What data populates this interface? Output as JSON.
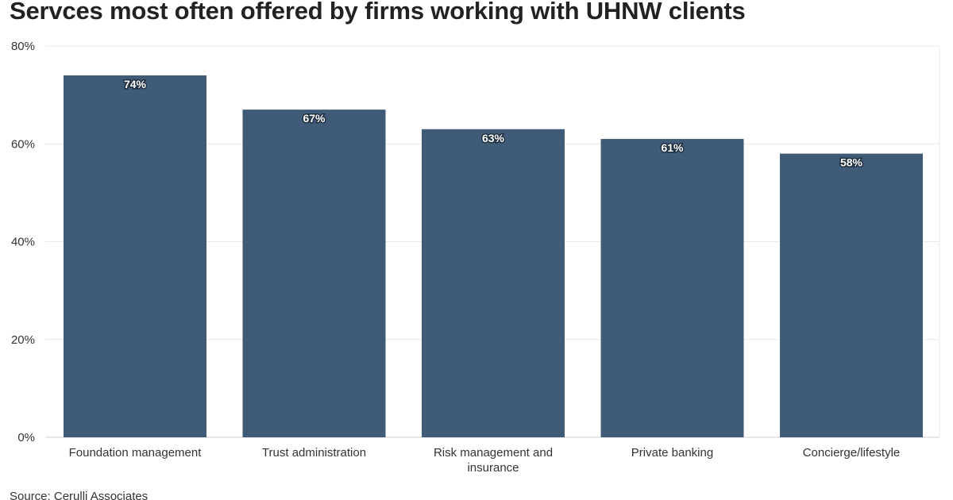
{
  "chart_data": {
    "type": "bar",
    "title": "Servces most often offered by firms working with UHNW clients",
    "categories": [
      "Foundation management",
      "Trust administration",
      "Risk management and insurance",
      "Private banking",
      "Concierge/lifestyle"
    ],
    "category_label_lines": [
      [
        "Foundation management"
      ],
      [
        "Trust administration"
      ],
      [
        "Risk management and",
        "insurance"
      ],
      [
        "Private banking"
      ],
      [
        "Concierge/lifestyle"
      ]
    ],
    "values": [
      74,
      67,
      63,
      61,
      58
    ],
    "data_labels": [
      "74%",
      "67%",
      "63%",
      "61%",
      "58%"
    ],
    "xlabel": "",
    "ylabel": "",
    "ylim": [
      0,
      80
    ],
    "yticks": [
      0,
      20,
      40,
      60,
      80
    ],
    "ytick_labels": [
      "0%",
      "20%",
      "40%",
      "60%",
      "80%"
    ],
    "grid": true,
    "bar_color": "#3f5b77",
    "source": "Source: Cerulli Associates"
  }
}
